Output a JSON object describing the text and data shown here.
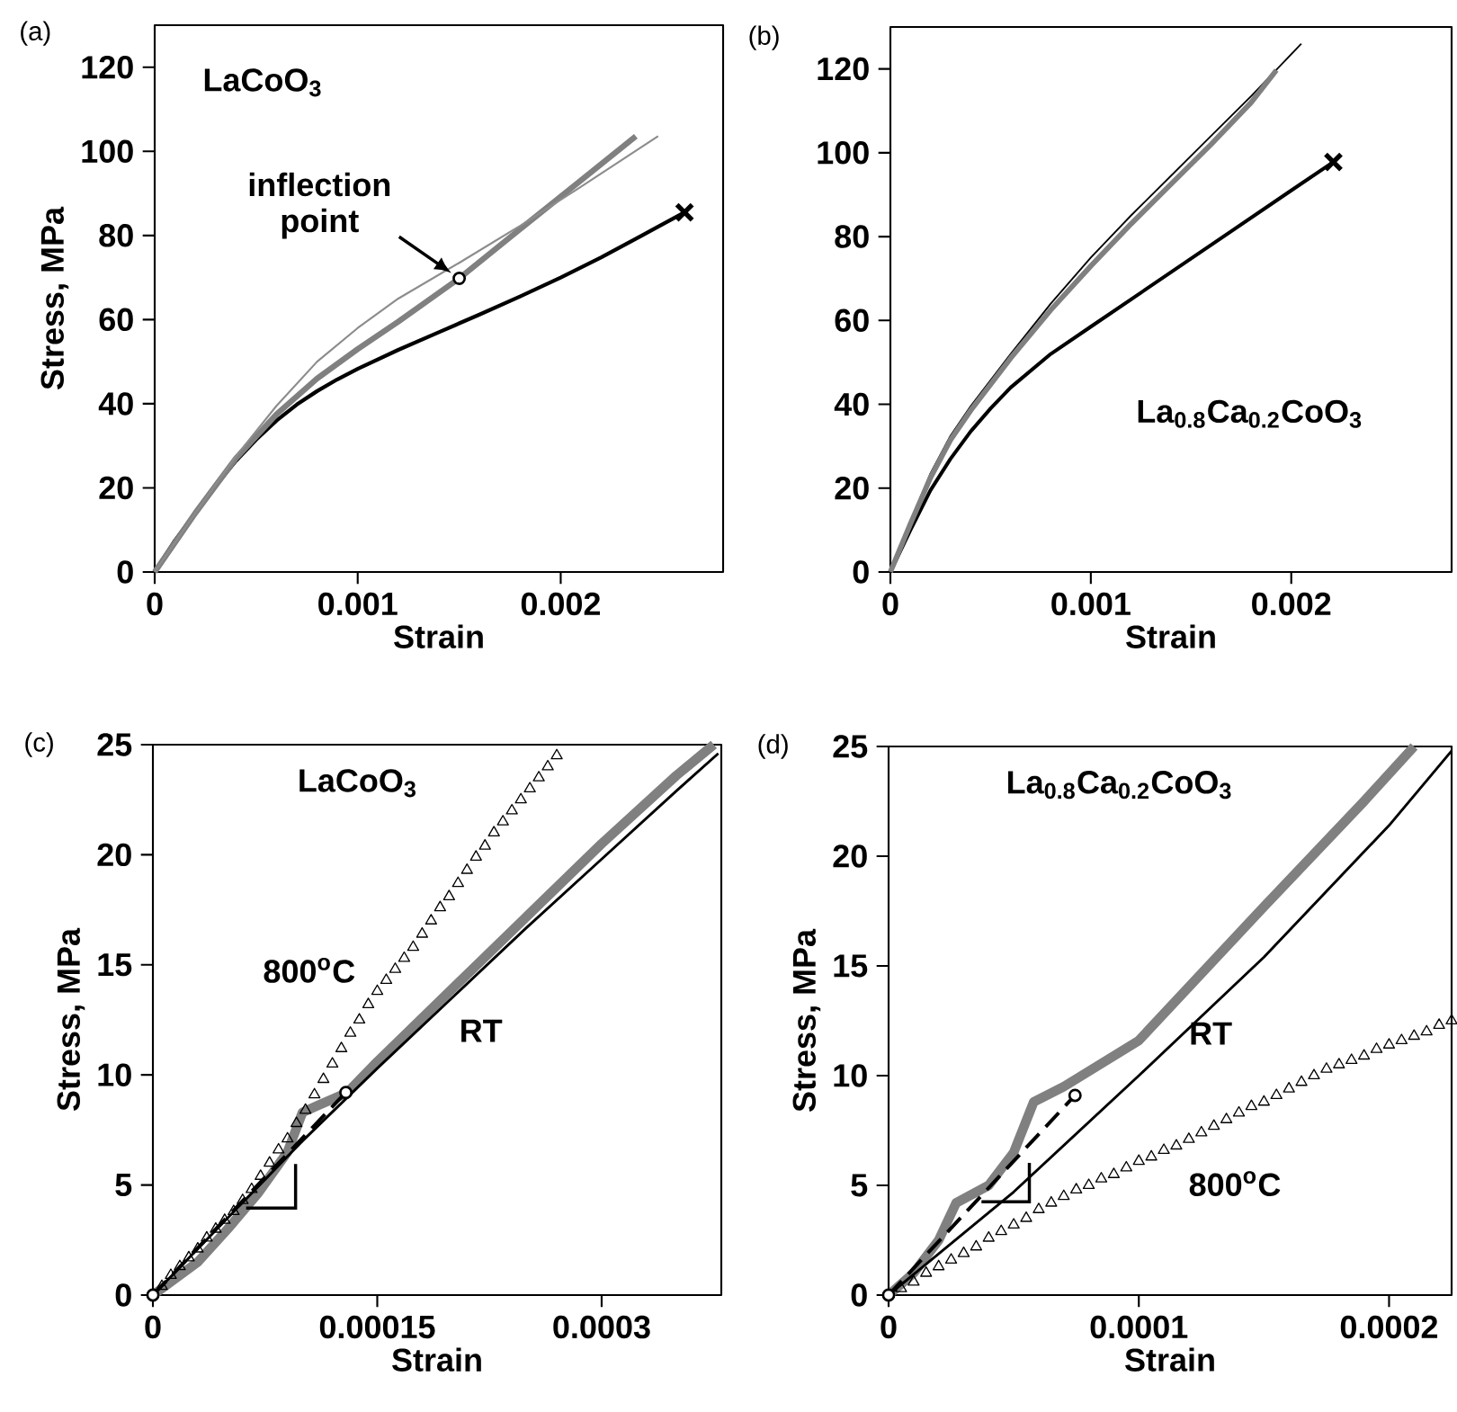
{
  "chart_data": [
    {
      "type": "line",
      "xlabel": "Strain",
      "ylabel": "Stress, MPa",
      "xlim": [
        0,
        0.0028
      ],
      "ylim": [
        0,
        130
      ],
      "xticks": [
        0,
        0.001,
        0.002
      ],
      "yticks": [
        0,
        20,
        40,
        60,
        80,
        100,
        120
      ],
      "annotations": [
        "(a)",
        "LaCoO$_{3}$",
        {
          "text": "inflection point",
          "x": 0.0015,
          "y": 69.8
        }
      ],
      "series": [
        {
          "color": "#000000",
          "x": [
            0,
            0.0001,
            0.0002,
            0.0003,
            0.0004,
            0.0005,
            0.0006,
            0.0007,
            0.0008,
            0.0009,
            0.001,
            0.0012,
            0.0014,
            0.0016,
            0.0018,
            0.002,
            0.0022,
            0.0024,
            0.00261
          ],
          "values": [
            0,
            7.5,
            14,
            20.5,
            26.4,
            31.5,
            36,
            39.8,
            43,
            45.8,
            48.3,
            52.8,
            57,
            61.2,
            65.5,
            70,
            74.8,
            80,
            85.5
          ]
        },
        {
          "color": "#808080",
          "x": [
            0,
            0.0002,
            0.0004,
            0.0006,
            0.0008,
            0.001,
            0.0012,
            0.0015,
            0.0018,
            0.0021,
            0.00237
          ],
          "values": [
            0,
            14,
            27,
            37.5,
            46,
            53,
            59.5,
            69.8,
            81.5,
            93.1,
            103.6
          ]
        },
        {
          "color": "#8c8c8c",
          "x": [
            0,
            0.0002,
            0.0004,
            0.0006,
            0.0008,
            0.001,
            0.0012,
            0.0015,
            0.0018,
            0.0021,
            0.00248
          ],
          "values": [
            0,
            14,
            27.5,
            39.5,
            50,
            58,
            65,
            73.5,
            82.3,
            91.6,
            103.6
          ]
        },
        {
          "type": "scatter",
          "marker": "cross",
          "color": "#000000",
          "x": [
            0.00261
          ],
          "values": [
            85.5
          ]
        },
        {
          "type": "scatter",
          "marker": "circle",
          "color": "#000000",
          "x": [
            0.0015
          ],
          "values": [
            69.8
          ]
        }
      ]
    },
    {
      "type": "line",
      "xlabel": "Strain",
      "xlim": [
        0,
        0.0028
      ],
      "ylim": [
        0,
        130
      ],
      "xticks": [
        0,
        0.001,
        0.002
      ],
      "yticks": [
        0,
        20,
        40,
        60,
        80,
        100,
        120
      ],
      "annotations": [
        "(b)",
        "La$_{0.8}$Ca$_{0.2}$CoO$_{3}$"
      ],
      "series": [
        {
          "color": "#000000",
          "x": [
            0,
            0.0001,
            0.0002,
            0.0003,
            0.0004,
            0.0005,
            0.0006,
            0.0008,
            0.001,
            0.0012,
            0.0014,
            0.0016,
            0.0018,
            0.002,
            0.00221
          ],
          "values": [
            0,
            10,
            19.5,
            27,
            33.5,
            39,
            44,
            52,
            58.5,
            65,
            71.5,
            78,
            84.5,
            91,
            97.8
          ]
        },
        {
          "color": "#000000",
          "x": [
            0,
            0.0001,
            0.0002,
            0.0003,
            0.0004,
            0.0006,
            0.0008,
            0.001,
            0.0012,
            0.0014,
            0.0016,
            0.0018,
            0.00205
          ],
          "values": [
            0,
            12,
            23.5,
            32.5,
            39.5,
            52,
            64,
            75,
            85,
            94.5,
            104,
            113.5,
            126
          ]
        },
        {
          "color": "#808080",
          "x": [
            0,
            0.0001,
            0.0002,
            0.0003,
            0.0004,
            0.0006,
            0.0008,
            0.001,
            0.0012,
            0.0014,
            0.0016,
            0.0018,
            0.001926
          ],
          "values": [
            0,
            11.5,
            22.5,
            31.5,
            38.5,
            51,
            62.5,
            73,
            83,
            92.5,
            102,
            112,
            119.7
          ]
        },
        {
          "type": "scatter",
          "marker": "cross",
          "color": "#000000",
          "x": [
            0.00221
          ],
          "values": [
            97.8
          ]
        }
      ]
    },
    {
      "type": "line",
      "xlabel": "Strain",
      "ylabel": "Stress, MPa",
      "xlim": [
        0,
        0.00038
      ],
      "ylim": [
        0,
        25
      ],
      "xticks": [
        0,
        0.00015,
        0.0003
      ],
      "yticks": [
        0,
        5,
        10,
        15,
        20,
        25
      ],
      "annotations": [
        "(c)",
        "LaCoO$_{3}$"
      ],
      "series": [
        {
          "type": "scatter",
          "marker": "triangle",
          "name": "800$^{o}$C",
          "color": "#000000",
          "x": [
            6e-06,
            1.2e-05,
            1.8e-05,
            2.4e-05,
            3e-05,
            3.6e-05,
            4.2e-05,
            4.8e-05,
            5.4e-05,
            6e-05,
            6.6e-05,
            7.2e-05,
            7.8e-05,
            8.4e-05,
            9e-05,
            9.6e-05,
            0.000102,
            0.000108,
            0.000114,
            0.00012,
            0.000126,
            0.000132,
            0.000138,
            0.000144,
            0.00015,
            0.000156,
            0.000162,
            0.000168,
            0.000174,
            0.00018,
            0.000186,
            0.000192,
            0.000198,
            0.000204,
            0.00021,
            0.000216,
            0.000222,
            0.000228,
            0.000234,
            0.00024,
            0.000246,
            0.000252,
            0.000258,
            0.000264,
            0.00027
          ],
          "values": [
            0.4,
            0.9,
            1.3,
            1.7,
            2.1,
            2.6,
            3,
            3.4,
            3.8,
            4.3,
            4.8,
            5.4,
            6,
            6.6,
            7.1,
            7.8,
            8.4,
            9.1,
            9.8,
            10.5,
            11.2,
            11.9,
            12.5,
            13.2,
            13.8,
            14.3,
            14.8,
            15.3,
            15.8,
            16.4,
            17,
            17.6,
            18.1,
            18.7,
            19.3,
            19.9,
            20.4,
            21,
            21.5,
            22,
            22.5,
            23,
            23.5,
            24,
            24.5
          ]
        },
        {
          "color": "#808080",
          "x": [
            0,
            3e-05,
            5e-05,
            7e-05,
            9e-05,
            0.0001,
            0.00011,
            0.00013,
            0.00015,
            0.0002,
            0.00025,
            0.0003,
            0.00035,
            0.000375
          ],
          "values": [
            0,
            1.5,
            3,
            4.6,
            6.5,
            8.3,
            8.6,
            9.2,
            10.6,
            13.9,
            17.2,
            20.5,
            23.6,
            25
          ]
        },
        {
          "name": "RT",
          "color": "#000000",
          "x": [
            0,
            5e-05,
            0.0001,
            0.00015,
            0.0002,
            0.00025,
            0.0003,
            0.00035,
            0.000378
          ],
          "values": [
            0,
            3.5,
            7,
            10.3,
            13.5,
            16.7,
            19.8,
            22.9,
            24.6
          ]
        },
        {
          "line_style": "dashed",
          "color": "#000000",
          "x": [
            0,
            0.000129
          ],
          "values": [
            0,
            9.2
          ]
        },
        {
          "type": "scatter",
          "marker": "circle",
          "color": "#000000",
          "x": [
            0,
            0.000129
          ],
          "values": [
            0,
            9.2
          ]
        }
      ]
    },
    {
      "type": "line",
      "xlabel": "Strain",
      "ylabel": "Stress, MPa",
      "xlim": [
        0,
        0.000225
      ],
      "ylim": [
        0,
        25
      ],
      "xticks": [
        0,
        0.0001,
        0.0002
      ],
      "yticks": [
        0,
        5,
        10,
        15,
        20,
        25
      ],
      "annotations": [
        "(d)",
        "La$_{0.8}$Ca$_{0.2}$CoO$_{3}$"
      ],
      "series": [
        {
          "type": "scatter",
          "marker": "triangle",
          "name": "800$^{o}$C",
          "color": "#000000",
          "x": [
            5e-06,
            1e-05,
            1.5e-05,
            2e-05,
            2.5e-05,
            3e-05,
            3.5e-05,
            4e-05,
            4.5e-05,
            5e-05,
            5.5e-05,
            6e-05,
            6.5e-05,
            7e-05,
            7.5e-05,
            8e-05,
            8.5e-05,
            9e-05,
            9.5e-05,
            0.0001,
            0.000105,
            0.00011,
            0.000115,
            0.00012,
            0.000125,
            0.00013,
            0.000135,
            0.00014,
            0.000145,
            0.00015,
            0.000155,
            0.00016,
            0.000165,
            0.00017,
            0.000175,
            0.00018,
            0.000185,
            0.00019,
            0.000195,
            0.0002,
            0.000205,
            0.00021,
            0.000215,
            0.00022,
            0.000225
          ],
          "values": [
            0.3,
            0.6,
            1,
            1.3,
            1.6,
            1.9,
            2.2,
            2.6,
            2.9,
            3.2,
            3.5,
            3.9,
            4.2,
            4.5,
            4.8,
            5,
            5.3,
            5.5,
            5.8,
            6.1,
            6.3,
            6.6,
            6.8,
            7.1,
            7.4,
            7.7,
            8,
            8.3,
            8.6,
            8.8,
            9.1,
            9.4,
            9.7,
            10,
            10.3,
            10.5,
            10.7,
            10.9,
            11.2,
            11.4,
            11.6,
            11.8,
            12,
            12.3,
            12.5
          ]
        },
        {
          "color": "#808080",
          "x": [
            0,
            1e-05,
            2e-05,
            2.7e-05,
            4e-05,
            5e-05,
            5.8e-05,
            7e-05,
            0.0001,
            0.00015,
            0.00019,
            0.00021
          ],
          "values": [
            0,
            1,
            2.5,
            4.2,
            5,
            6.5,
            8.8,
            9.5,
            11.6,
            17.7,
            22.5,
            25
          ]
        },
        {
          "name": "RT",
          "color": "#000000",
          "x": [
            0,
            5e-05,
            0.0001,
            0.00015,
            0.0002,
            0.000225
          ],
          "values": [
            0,
            4.7,
            10,
            15.4,
            21.4,
            24.8
          ]
        },
        {
          "line_style": "dashed",
          "color": "#000000",
          "x": [
            0,
            7.45e-05
          ],
          "values": [
            0,
            9.1
          ]
        },
        {
          "type": "scatter",
          "marker": "circle",
          "color": "#000000",
          "x": [
            0,
            7.45e-05
          ],
          "values": [
            0,
            9.1
          ]
        }
      ]
    }
  ]
}
